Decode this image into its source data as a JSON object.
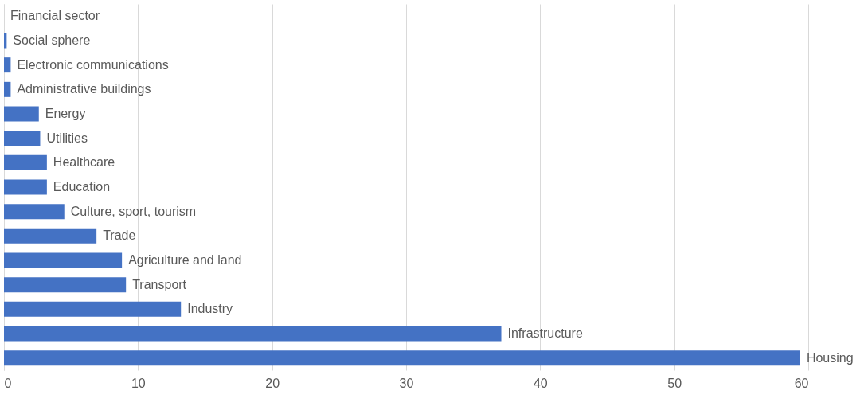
{
  "chart_data": {
    "type": "bar",
    "orientation": "horizontal",
    "categories": [
      "Financial sector",
      "Social sphere",
      "Electronic communications",
      "Administrative buildings",
      "Energy",
      "Utilities",
      "Healthcare",
      "Education",
      "Culture, sport, tourism",
      "Trade",
      "Agriculture and land",
      "Transport",
      "Industry",
      "Infrastructure",
      "Housing"
    ],
    "values": [
      0,
      0.2,
      0.5,
      0.5,
      2.6,
      2.7,
      3.2,
      3.2,
      4.5,
      6.9,
      8.8,
      9.1,
      13.2,
      37.1,
      59.4
    ],
    "color": "#4472c4",
    "xlim": [
      0,
      60
    ],
    "xticks": [
      0,
      10,
      20,
      30,
      40,
      50,
      60
    ],
    "grid": "x",
    "tick_labels": "x"
  }
}
